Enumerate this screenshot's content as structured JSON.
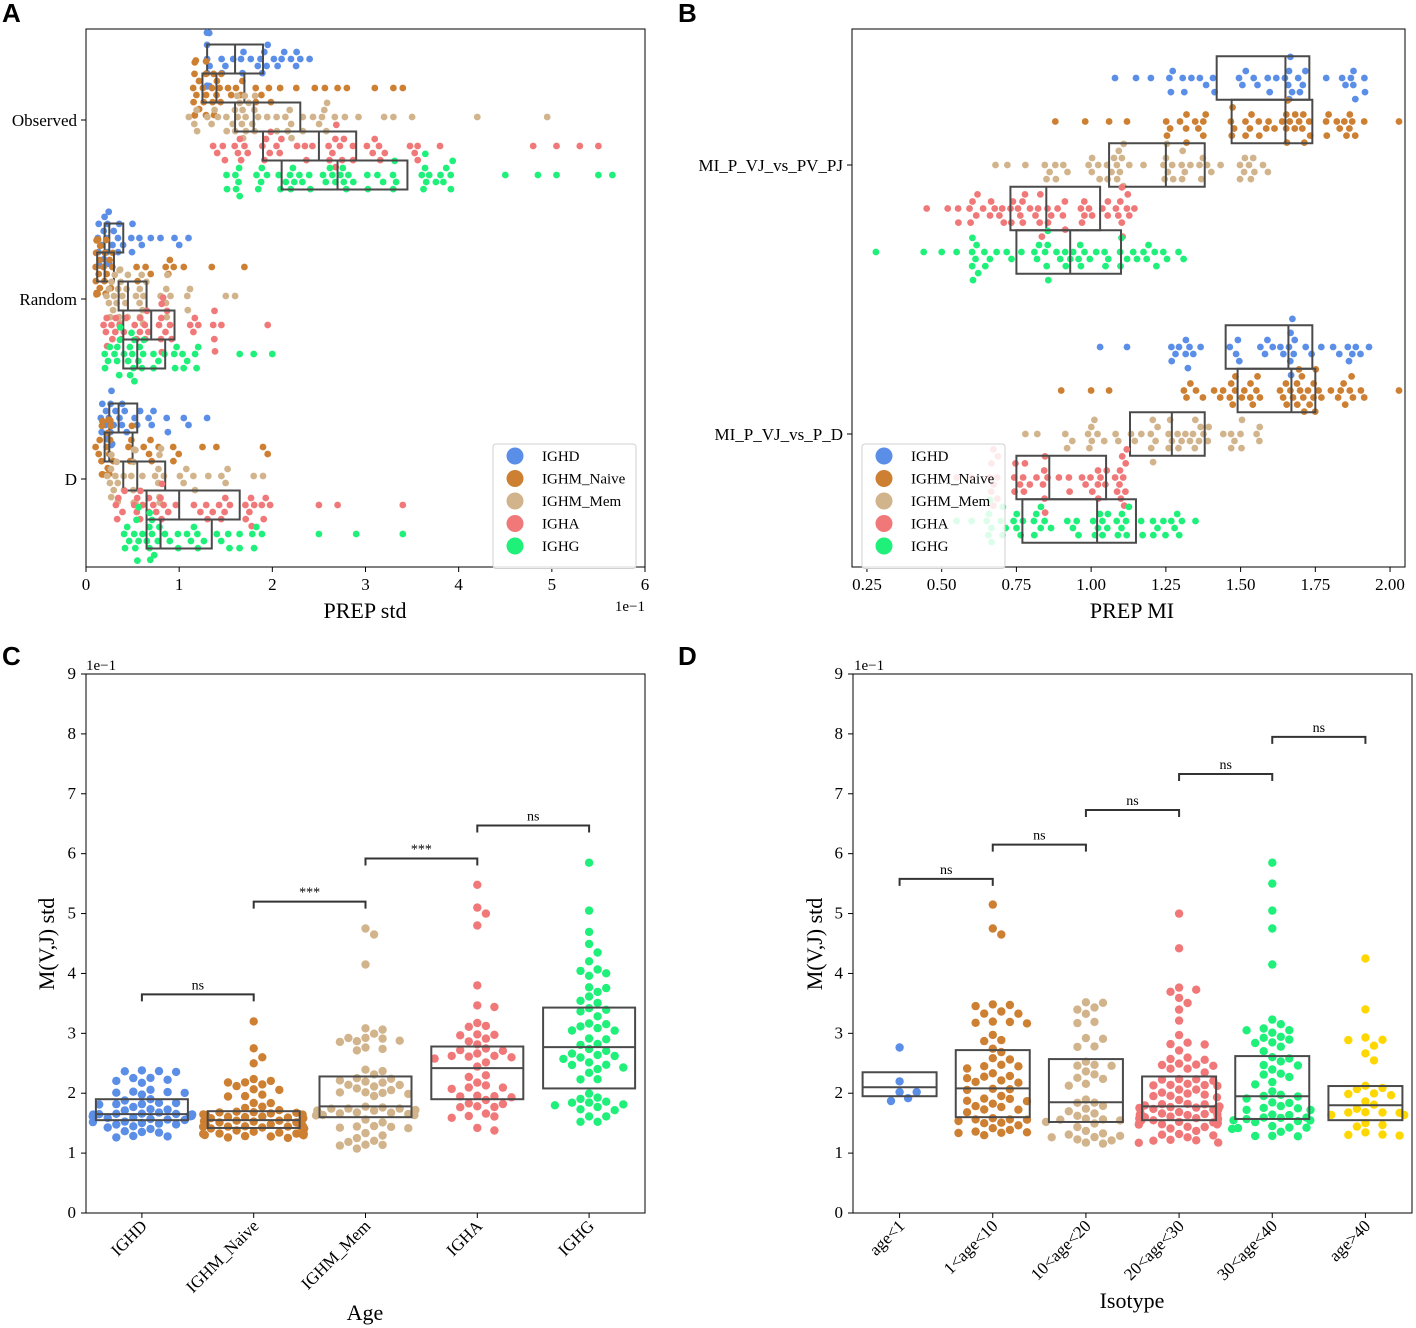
{
  "figure": {
    "panel_labels": [
      "A",
      "B",
      "C",
      "D"
    ]
  },
  "chart_data": [
    {
      "panel": "A",
      "type": "scatter",
      "subtype": "horizontal swarm + box plot",
      "xlabel": "PREP std",
      "ylabel": "",
      "x_exponent": "1e−1",
      "xlim": [
        0,
        6
      ],
      "x_ticks": [
        "0",
        "1",
        "2",
        "3",
        "4",
        "5",
        "6"
      ],
      "categories": [
        "Observed",
        "Random",
        "D"
      ],
      "legend": {
        "position": "lower-right",
        "entries": [
          "IGHD",
          "IGHM_Naive",
          "IGHM_Mem",
          "IGHA",
          "IGHG"
        ]
      },
      "series": [
        {
          "name": "IGHD",
          "color": "#5b8ee6",
          "boxes": [
            {
              "category": "Observed",
              "q1": 1.3,
              "median": 1.6,
              "q3": 1.9,
              "min": 1.3,
              "max": 2.4,
              "outliers": [
                1.95,
                2.1,
                2.2,
                2.3,
                2.4
              ],
              "n": 34
            },
            {
              "category": "Random",
              "q1": 0.2,
              "median": 0.25,
              "q3": 0.4,
              "min": 0.12,
              "max": 0.7,
              "outliers": [
                0.8,
                0.95,
                1.0,
                1.1
              ],
              "n": 30
            },
            {
              "category": "D",
              "q1": 0.25,
              "median": 0.35,
              "q3": 0.55,
              "min": 0.12,
              "max": 0.9,
              "outliers": [
                1.05,
                1.1,
                1.3
              ],
              "n": 30
            }
          ]
        },
        {
          "name": "IGHM_Naive",
          "color": "#cd7f32",
          "boxes": [
            {
              "category": "Observed",
              "q1": 1.25,
              "median": 1.4,
              "q3": 1.7,
              "min": 1.15,
              "max": 2.6,
              "outliers": [
                2.7,
                2.8,
                3.1,
                3.3,
                3.4
              ],
              "n": 44
            },
            {
              "category": "Random",
              "q1": 0.12,
              "median": 0.2,
              "q3": 0.3,
              "min": 0.1,
              "max": 1.0,
              "outliers": [
                1.05,
                1.35,
                1.7
              ],
              "n": 36
            },
            {
              "category": "D",
              "q1": 0.2,
              "median": 0.25,
              "q3": 0.5,
              "min": 0.1,
              "max": 1.0,
              "outliers": [
                1.25,
                1.4,
                1.9,
                1.95
              ],
              "n": 36
            }
          ]
        },
        {
          "name": "IGHM_Mem",
          "color": "#d2b48c",
          "boxes": [
            {
              "category": "Observed",
              "q1": 1.6,
              "median": 1.8,
              "q3": 2.3,
              "min": 1.0,
              "max": 3.0,
              "outliers": [
                3.2,
                3.3,
                3.5,
                4.2,
                4.95
              ],
              "n": 52
            },
            {
              "category": "Random",
              "q1": 0.35,
              "median": 0.45,
              "q3": 0.65,
              "min": 0.2,
              "max": 1.2,
              "outliers": [
                1.5,
                1.6
              ],
              "n": 40
            },
            {
              "category": "D",
              "q1": 0.4,
              "median": 0.55,
              "q3": 0.85,
              "min": 0.2,
              "max": 1.6,
              "outliers": [
                1.8,
                1.9
              ],
              "n": 40
            }
          ]
        },
        {
          "name": "IGHA",
          "color": "#f07878",
          "boxes": [
            {
              "category": "Observed",
              "q1": 1.9,
              "median": 2.5,
              "q3": 2.9,
              "min": 1.35,
              "max": 3.6,
              "outliers": [
                3.8,
                4.8,
                5.05,
                5.3,
                5.5
              ],
              "n": 48
            },
            {
              "category": "Random",
              "q1": 0.4,
              "median": 0.7,
              "q3": 0.95,
              "min": 0.15,
              "max": 1.5,
              "outliers": [
                1.95
              ],
              "n": 40
            },
            {
              "category": "D",
              "q1": 0.65,
              "median": 1.0,
              "q3": 1.65,
              "min": 0.3,
              "max": 2.0,
              "outliers": [
                2.5,
                2.7,
                3.4
              ],
              "n": 44
            }
          ]
        },
        {
          "name": "IGHG",
          "color": "#1ef07a",
          "boxes": [
            {
              "category": "Observed",
              "q1": 2.1,
              "median": 2.7,
              "q3": 3.45,
              "min": 1.5,
              "max": 4.0,
              "outliers": [
                4.5,
                4.85,
                5.05,
                5.5,
                5.65
              ],
              "n": 60
            },
            {
              "category": "Random",
              "q1": 0.4,
              "median": 0.55,
              "q3": 0.85,
              "min": 0.2,
              "max": 1.3,
              "outliers": [
                1.65,
                1.8,
                2.0
              ],
              "n": 40
            },
            {
              "category": "D",
              "q1": 0.65,
              "median": 0.8,
              "q3": 1.35,
              "min": 0.3,
              "max": 2.0,
              "outliers": [
                2.5,
                2.9,
                3.4
              ],
              "n": 44
            }
          ]
        }
      ]
    },
    {
      "panel": "B",
      "type": "scatter",
      "subtype": "horizontal swarm + box plot",
      "xlabel": "PREP MI",
      "ylabel": "",
      "xlim": [
        0.2,
        2.05
      ],
      "x_ticks": [
        "0.25",
        "0.50",
        "0.75",
        "1.00",
        "1.25",
        "1.50",
        "1.75",
        "2.00"
      ],
      "categories": [
        "MI_P_VJ_vs_PV_PJ",
        "MI_P_VJ_vs_P_D"
      ],
      "legend": {
        "position": "lower-left",
        "entries": [
          "IGHD",
          "IGHM_Naive",
          "IGHM_Mem",
          "IGHA",
          "IGHG"
        ]
      },
      "series": [
        {
          "name": "IGHD",
          "color": "#5b8ee6",
          "boxes": [
            {
              "category": "MI_P_VJ_vs_PV_PJ",
              "q1": 1.42,
              "median": 1.65,
              "q3": 1.73,
              "min": 1.26,
              "max": 1.92,
              "outliers": [
                1.08,
                1.15,
                1.2
              ],
              "n": 40
            },
            {
              "category": "MI_P_VJ_vs_P_D",
              "q1": 1.45,
              "median": 1.66,
              "q3": 1.74,
              "min": 1.26,
              "max": 1.93,
              "outliers": [
                1.03,
                1.12
              ],
              "n": 40
            }
          ]
        },
        {
          "name": "IGHM_Naive",
          "color": "#cd7f32",
          "boxes": [
            {
              "category": "MI_P_VJ_vs_PV_PJ",
              "q1": 1.47,
              "median": 1.65,
              "q3": 1.74,
              "min": 1.25,
              "max": 1.92,
              "outliers": [
                0.88,
                0.98,
                1.06,
                1.12,
                2.03
              ],
              "n": 56
            },
            {
              "category": "MI_P_VJ_vs_P_D",
              "q1": 1.49,
              "median": 1.67,
              "q3": 1.75,
              "min": 1.3,
              "max": 1.93,
              "outliers": [
                0.9,
                1.0,
                1.06,
                2.03
              ],
              "n": 56
            }
          ]
        },
        {
          "name": "IGHM_Mem",
          "color": "#d2b48c",
          "boxes": [
            {
              "category": "MI_P_VJ_vs_PV_PJ",
              "q1": 1.06,
              "median": 1.25,
              "q3": 1.38,
              "min": 0.84,
              "max": 1.6,
              "outliers": [
                0.68,
                0.72,
                0.78
              ],
              "n": 56
            },
            {
              "category": "MI_P_VJ_vs_P_D",
              "q1": 1.13,
              "median": 1.27,
              "q3": 1.38,
              "min": 0.9,
              "max": 1.57,
              "outliers": [
                0.78,
                0.82
              ],
              "n": 50
            }
          ]
        },
        {
          "name": "IGHA",
          "color": "#f07878",
          "boxes": [
            {
              "category": "MI_P_VJ_vs_PV_PJ",
              "q1": 0.73,
              "median": 0.85,
              "q3": 1.03,
              "min": 0.55,
              "max": 1.15,
              "outliers": [
                0.45,
                0.52
              ],
              "n": 56
            },
            {
              "category": "MI_P_VJ_vs_P_D",
              "q1": 0.75,
              "median": 0.86,
              "q3": 1.05,
              "min": 0.66,
              "max": 1.13,
              "outliers": [
                0.55,
                0.6
              ],
              "n": 50
            }
          ]
        },
        {
          "name": "IGHG",
          "color": "#1ef07a",
          "boxes": [
            {
              "category": "MI_P_VJ_vs_PV_PJ",
              "q1": 0.75,
              "median": 0.93,
              "q3": 1.1,
              "min": 0.6,
              "max": 1.32,
              "outliers": [
                0.28,
                0.44,
                0.5,
                0.55
              ],
              "n": 56
            },
            {
              "category": "MI_P_VJ_vs_P_D",
              "q1": 0.77,
              "median": 1.02,
              "q3": 1.15,
              "min": 0.65,
              "max": 1.35,
              "outliers": [
                0.55,
                0.6
              ],
              "n": 56
            }
          ]
        }
      ]
    },
    {
      "panel": "C",
      "type": "scatter",
      "subtype": "vertical swarm + box plot with significance brackets",
      "xlabel": "Age",
      "ylabel": "M(V,J) std",
      "y_exponent": "1e−1",
      "ylim": [
        0,
        9
      ],
      "y_ticks": [
        "0",
        "1",
        "2",
        "3",
        "4",
        "5",
        "6",
        "7",
        "8",
        "9"
      ],
      "categories": [
        "IGHD",
        "IGHM_Naive",
        "IGHM_Mem",
        "IGHA",
        "IGHG"
      ],
      "series": [
        {
          "name": "IGHD",
          "color": "#5b8ee6",
          "q1": 1.55,
          "median": 1.65,
          "q3": 1.9,
          "min": 1.22,
          "max": 2.45,
          "outliers": [],
          "n": 60
        },
        {
          "name": "IGHM_Naive",
          "color": "#cd7f32",
          "q1": 1.42,
          "median": 1.55,
          "q3": 1.7,
          "min": 1.25,
          "max": 2.25,
          "outliers": [
            2.5,
            2.6,
            2.75,
            3.2
          ],
          "n": 70
        },
        {
          "name": "IGHM_Mem",
          "color": "#d2b48c",
          "q1": 1.6,
          "median": 1.78,
          "q3": 2.28,
          "min": 1.07,
          "max": 3.2,
          "outliers": [
            4.15,
            4.65,
            4.75
          ],
          "n": 64
        },
        {
          "name": "IGHA",
          "color": "#f07878",
          "q1": 1.9,
          "median": 2.42,
          "q3": 2.78,
          "min": 1.35,
          "max": 3.5,
          "outliers": [
            3.8,
            4.8,
            5.0,
            5.1,
            5.48
          ],
          "n": 50
        },
        {
          "name": "IGHG",
          "color": "#1ef07a",
          "q1": 2.08,
          "median": 2.77,
          "q3": 3.43,
          "min": 1.45,
          "max": 4.7,
          "outliers": [
            5.05,
            5.85
          ],
          "n": 60
        }
      ],
      "significance": [
        {
          "from": "IGHD",
          "to": "IGHM_Naive",
          "label": "ns",
          "y": 3.65
        },
        {
          "from": "IGHM_Naive",
          "to": "IGHM_Mem",
          "label": "***",
          "y": 5.2
        },
        {
          "from": "IGHM_Mem",
          "to": "IGHA",
          "label": "***",
          "y": 5.92
        },
        {
          "from": "IGHA",
          "to": "IGHG",
          "label": "ns",
          "y": 6.47
        }
      ]
    },
    {
      "panel": "D",
      "type": "scatter",
      "subtype": "vertical swarm + box plot with significance brackets",
      "xlabel": "Isotype",
      "ylabel": "M(V,J) std",
      "y_exponent": "1e−1",
      "ylim": [
        0,
        9
      ],
      "y_ticks": [
        "0",
        "1",
        "2",
        "3",
        "4",
        "5",
        "6",
        "7",
        "8",
        "9"
      ],
      "categories": [
        "age<1",
        "1<age<10",
        "10<age<20",
        "20<age<30",
        "30<age<40",
        "age>40"
      ],
      "series": [
        {
          "name": "age<1",
          "color": "#5b8ee6",
          "q1": 1.95,
          "median": 2.1,
          "q3": 2.35,
          "min": 1.57,
          "max": 2.82,
          "outliers": [],
          "n": 6
        },
        {
          "name": "1<age<10",
          "color": "#cd7f32",
          "q1": 1.6,
          "median": 2.08,
          "q3": 2.72,
          "min": 1.28,
          "max": 3.52,
          "outliers": [
            4.65,
            4.75,
            5.15
          ],
          "n": 60
        },
        {
          "name": "10<age<20",
          "color": "#d2b48c",
          "q1": 1.52,
          "median": 1.85,
          "q3": 2.57,
          "min": 1.07,
          "max": 3.72,
          "outliers": [],
          "n": 46
        },
        {
          "name": "20<age<30",
          "color": "#f07878",
          "q1": 1.55,
          "median": 1.78,
          "q3": 2.28,
          "min": 1.15,
          "max": 3.95,
          "outliers": [
            4.42,
            5.0
          ],
          "n": 90
        },
        {
          "name": "30<age<40",
          "color": "#1ef07a",
          "q1": 1.57,
          "median": 1.95,
          "q3": 2.62,
          "min": 1.25,
          "max": 3.45,
          "outliers": [
            4.15,
            4.75,
            5.05,
            5.5,
            5.85
          ],
          "n": 60
        },
        {
          "name": "age>40",
          "color": "#ffd700",
          "q1": 1.55,
          "median": 1.8,
          "q3": 2.12,
          "min": 1.22,
          "max": 3.0,
          "outliers": [
            3.4,
            4.25
          ],
          "n": 30
        }
      ],
      "significance": [
        {
          "from": "age<1",
          "to": "1<age<10",
          "label": "ns",
          "y": 5.58
        },
        {
          "from": "1<age<10",
          "to": "10<age<20",
          "label": "ns",
          "y": 6.15
        },
        {
          "from": "10<age<20",
          "to": "20<age<30",
          "label": "ns",
          "y": 6.73
        },
        {
          "from": "20<age<30",
          "to": "30<age<40",
          "label": "ns",
          "y": 7.33
        },
        {
          "from": "30<age<40",
          "to": "age>40",
          "label": "ns",
          "y": 7.95
        }
      ]
    }
  ]
}
